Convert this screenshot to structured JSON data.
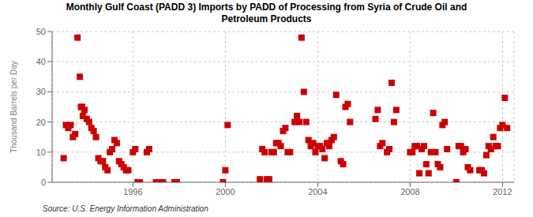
{
  "chart_data": {
    "type": "scatter",
    "title": "Monthly Gulf Coast (PADD 3) Imports by PADD of Processing from Syria of Crude Oil and\nPetroleum Products",
    "ylabel": "Thousand Barrels per Day",
    "annotations": [
      "Source: U.S. Energy Information Administration"
    ],
    "color": "#CC0000",
    "marker": "square",
    "grid": true,
    "xlim": [
      1992.5,
      2012.5
    ],
    "ylim": [
      0,
      50
    ],
    "xticks": [
      1996,
      2000,
      2004,
      2008,
      2012
    ],
    "yticks": [
      0,
      10,
      20,
      30,
      40,
      50
    ],
    "x": [
      1993.0,
      1993.1,
      1993.2,
      1993.3,
      1993.4,
      1993.5,
      1993.6,
      1993.7,
      1993.8,
      1993.9,
      1994.0,
      1994.1,
      1994.2,
      1994.3,
      1994.4,
      1994.5,
      1994.6,
      1994.7,
      1994.8,
      1994.9,
      1995.0,
      1995.1,
      1995.2,
      1995.3,
      1995.4,
      1995.5,
      1995.6,
      1995.7,
      1995.8,
      1996.0,
      1996.1,
      1996.2,
      1996.3,
      1996.6,
      1996.7,
      1997.0,
      1997.1,
      1997.2,
      1997.3,
      1997.8,
      1997.9,
      1993.75,
      1993.83,
      1999.9,
      2000.0,
      2000.1,
      2001.5,
      2001.6,
      2001.7,
      2001.8,
      2001.9,
      2002.0,
      2002.1,
      2002.2,
      2002.3,
      2002.4,
      2002.5,
      2002.6,
      2002.7,
      2002.8,
      2003.0,
      2003.1,
      2003.2,
      2003.3,
      2003.4,
      2003.5,
      2003.6,
      2003.7,
      2003.8,
      2003.9,
      2004.0,
      2004.1,
      2004.2,
      2004.3,
      2004.4,
      2004.5,
      2004.6,
      2004.7,
      2004.8,
      2005.0,
      2005.1,
      2005.2,
      2005.3,
      2005.4,
      2006.5,
      2006.6,
      2006.7,
      2006.8,
      2007.0,
      2007.1,
      2007.2,
      2007.3,
      2007.4,
      2008.0,
      2008.1,
      2008.2,
      2008.3,
      2008.4,
      2008.5,
      2008.6,
      2008.7,
      2008.8,
      2008.9,
      2009.0,
      2009.1,
      2009.2,
      2009.3,
      2009.4,
      2009.5,
      2009.6,
      2010.0,
      2010.1,
      2010.2,
      2010.3,
      2010.4,
      2010.5,
      2010.6,
      2011.0,
      2011.1,
      2011.2,
      2011.3,
      2011.4,
      2011.5,
      2011.6,
      2011.7,
      2011.8,
      2011.9,
      2012.0,
      2012.1,
      2012.2
    ],
    "values": [
      8,
      19,
      18,
      19,
      15,
      16,
      48,
      35,
      25,
      24,
      21,
      20,
      18,
      17,
      15,
      8,
      7,
      7,
      5,
      4,
      10,
      11,
      14,
      13,
      7,
      6,
      5,
      4,
      4,
      10,
      11,
      0,
      0,
      10,
      11,
      0,
      0,
      0,
      0,
      0,
      0,
      25,
      22,
      0,
      4,
      19,
      1,
      11,
      10,
      1,
      1,
      10,
      10,
      13,
      13,
      12,
      17,
      18,
      10,
      10,
      20,
      22,
      20,
      48,
      30,
      20,
      14,
      12,
      13,
      10,
      12,
      12,
      11,
      8,
      13,
      12,
      14,
      15,
      29,
      7,
      6,
      25,
      26,
      20,
      21,
      24,
      12,
      13,
      10,
      11,
      33,
      20,
      24,
      10,
      10,
      12,
      12,
      3,
      11,
      12,
      6,
      3,
      10,
      23,
      10,
      6,
      5,
      19,
      20,
      11,
      0,
      12,
      12,
      10,
      11,
      5,
      4,
      4,
      4,
      3,
      9,
      12,
      11,
      15,
      12,
      12,
      18,
      19,
      28,
      18
    ]
  }
}
